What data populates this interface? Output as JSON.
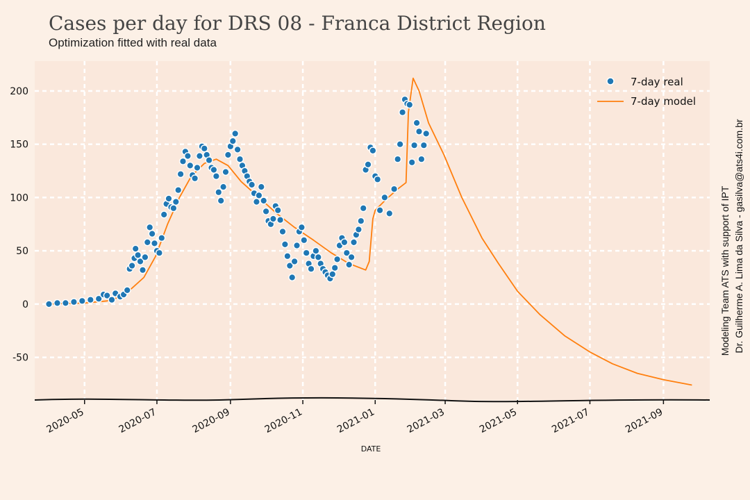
{
  "chart_data": {
    "type": "scatter",
    "title": "Cases per day for DRS 08 - Franca District Region",
    "subtitle": "Optimization fitted with real data",
    "xlabel": "DATE",
    "ylabel": "",
    "credit_lines": [
      "Modeling Team ATS with support of IPT",
      "Dr. Guilherme A. Lima da Silva - gasilva@ats4i.com.br"
    ],
    "xlim": [
      "2020-03-20",
      "2021-10-10"
    ],
    "ylim": [
      -90,
      228
    ],
    "x_ticks": [
      "2020-05",
      "2020-07",
      "2020-09",
      "2020-11",
      "2021-01",
      "2021-03",
      "2021-05",
      "2021-07",
      "2021-09"
    ],
    "y_ticks": [
      200,
      150,
      100,
      50,
      0,
      -50
    ],
    "grid": true,
    "legend_position": "top-right",
    "colors": {
      "real": "#1f77b4",
      "model": "#ff7f0e",
      "background": "#fcf0e6",
      "plot_area": "#fae8dc"
    },
    "series": [
      {
        "name": "7-day real",
        "kind": "scatter",
        "points": [
          [
            "2020-04-01",
            0
          ],
          [
            "2020-04-08",
            1
          ],
          [
            "2020-04-15",
            1
          ],
          [
            "2020-04-22",
            2
          ],
          [
            "2020-04-29",
            3
          ],
          [
            "2020-05-06",
            4
          ],
          [
            "2020-05-13",
            5
          ],
          [
            "2020-05-17",
            9
          ],
          [
            "2020-05-20",
            8
          ],
          [
            "2020-05-24",
            4
          ],
          [
            "2020-05-27",
            10
          ],
          [
            "2020-05-31",
            7
          ],
          [
            "2020-06-03",
            9
          ],
          [
            "2020-06-06",
            13
          ],
          [
            "2020-06-08",
            33
          ],
          [
            "2020-06-10",
            36
          ],
          [
            "2020-06-12",
            43
          ],
          [
            "2020-06-13",
            52
          ],
          [
            "2020-06-15",
            46
          ],
          [
            "2020-06-17",
            40
          ],
          [
            "2020-06-19",
            32
          ],
          [
            "2020-06-21",
            44
          ],
          [
            "2020-06-23",
            58
          ],
          [
            "2020-06-25",
            72
          ],
          [
            "2020-06-27",
            66
          ],
          [
            "2020-06-29",
            57
          ],
          [
            "2020-07-01",
            50
          ],
          [
            "2020-07-03",
            48
          ],
          [
            "2020-07-05",
            62
          ],
          [
            "2020-07-07",
            84
          ],
          [
            "2020-07-09",
            94
          ],
          [
            "2020-07-11",
            99
          ],
          [
            "2020-07-13",
            91
          ],
          [
            "2020-07-15",
            90
          ],
          [
            "2020-07-17",
            96
          ],
          [
            "2020-07-19",
            107
          ],
          [
            "2020-07-21",
            122
          ],
          [
            "2020-07-23",
            134
          ],
          [
            "2020-07-25",
            143
          ],
          [
            "2020-07-27",
            139
          ],
          [
            "2020-07-29",
            130
          ],
          [
            "2020-07-31",
            121
          ],
          [
            "2020-08-02",
            118
          ],
          [
            "2020-08-04",
            128
          ],
          [
            "2020-08-06",
            139
          ],
          [
            "2020-08-08",
            148
          ],
          [
            "2020-08-10",
            146
          ],
          [
            "2020-08-12",
            140
          ],
          [
            "2020-08-14",
            135
          ],
          [
            "2020-08-16",
            128
          ],
          [
            "2020-08-18",
            126
          ],
          [
            "2020-08-20",
            120
          ],
          [
            "2020-08-22",
            105
          ],
          [
            "2020-08-24",
            97
          ],
          [
            "2020-08-26",
            110
          ],
          [
            "2020-08-28",
            124
          ],
          [
            "2020-08-30",
            140
          ],
          [
            "2020-09-01",
            148
          ],
          [
            "2020-09-03",
            153
          ],
          [
            "2020-09-05",
            160
          ],
          [
            "2020-09-07",
            145
          ],
          [
            "2020-09-09",
            136
          ],
          [
            "2020-09-11",
            130
          ],
          [
            "2020-09-13",
            125
          ],
          [
            "2020-09-15",
            120
          ],
          [
            "2020-09-17",
            115
          ],
          [
            "2020-09-19",
            112
          ],
          [
            "2020-09-21",
            104
          ],
          [
            "2020-09-23",
            96
          ],
          [
            "2020-09-25",
            102
          ],
          [
            "2020-09-27",
            110
          ],
          [
            "2020-09-29",
            97
          ],
          [
            "2020-10-01",
            87
          ],
          [
            "2020-10-03",
            78
          ],
          [
            "2020-10-05",
            75
          ],
          [
            "2020-10-07",
            80
          ],
          [
            "2020-10-09",
            92
          ],
          [
            "2020-10-11",
            88
          ],
          [
            "2020-10-13",
            79
          ],
          [
            "2020-10-15",
            68
          ],
          [
            "2020-10-17",
            56
          ],
          [
            "2020-10-19",
            45
          ],
          [
            "2020-10-21",
            36
          ],
          [
            "2020-10-23",
            25
          ],
          [
            "2020-10-25",
            40
          ],
          [
            "2020-10-27",
            55
          ],
          [
            "2020-10-29",
            68
          ],
          [
            "2020-10-31",
            72
          ],
          [
            "2020-11-02",
            60
          ],
          [
            "2020-11-04",
            48
          ],
          [
            "2020-11-06",
            38
          ],
          [
            "2020-11-08",
            33
          ],
          [
            "2020-11-10",
            45
          ],
          [
            "2020-11-12",
            50
          ],
          [
            "2020-11-14",
            44
          ],
          [
            "2020-11-16",
            38
          ],
          [
            "2020-11-18",
            33
          ],
          [
            "2020-11-20",
            30
          ],
          [
            "2020-11-22",
            27
          ],
          [
            "2020-11-24",
            24
          ],
          [
            "2020-11-26",
            28
          ],
          [
            "2020-11-28",
            34
          ],
          [
            "2020-11-30",
            42
          ],
          [
            "2020-12-02",
            55
          ],
          [
            "2020-12-04",
            62
          ],
          [
            "2020-12-06",
            58
          ],
          [
            "2020-12-08",
            48
          ],
          [
            "2020-12-10",
            37
          ],
          [
            "2020-12-12",
            44
          ],
          [
            "2020-12-14",
            58
          ],
          [
            "2020-12-16",
            65
          ],
          [
            "2020-12-18",
            70
          ],
          [
            "2020-12-20",
            78
          ],
          [
            "2020-12-22",
            90
          ],
          [
            "2020-12-24",
            126
          ],
          [
            "2020-12-26",
            131
          ],
          [
            "2020-12-28",
            147
          ],
          [
            "2020-12-30",
            144
          ],
          [
            "2021-01-01",
            120
          ],
          [
            "2021-01-03",
            117
          ],
          [
            "2021-01-05",
            88
          ],
          [
            "2021-01-09",
            100
          ],
          [
            "2021-01-13",
            85
          ],
          [
            "2021-01-17",
            108
          ],
          [
            "2021-01-20",
            136
          ],
          [
            "2021-01-22",
            150
          ],
          [
            "2021-01-24",
            180
          ],
          [
            "2021-01-26",
            192
          ],
          [
            "2021-01-28",
            188
          ],
          [
            "2021-01-30",
            187
          ],
          [
            "2021-02-01",
            133
          ],
          [
            "2021-02-03",
            149
          ],
          [
            "2021-02-05",
            170
          ],
          [
            "2021-02-07",
            162
          ],
          [
            "2021-02-09",
            136
          ],
          [
            "2021-02-11",
            149
          ],
          [
            "2021-02-13",
            160
          ]
        ]
      },
      {
        "name": "7-day model",
        "kind": "line",
        "points": [
          [
            "2020-04-01",
            0
          ],
          [
            "2020-05-01",
            1
          ],
          [
            "2020-05-20",
            3
          ],
          [
            "2020-06-01",
            7
          ],
          [
            "2020-06-10",
            15
          ],
          [
            "2020-06-20",
            25
          ],
          [
            "2020-06-30",
            45
          ],
          [
            "2020-07-10",
            75
          ],
          [
            "2020-07-20",
            100
          ],
          [
            "2020-07-30",
            120
          ],
          [
            "2020-08-10",
            132
          ],
          [
            "2020-08-20",
            136
          ],
          [
            "2020-08-30",
            130
          ],
          [
            "2020-09-10",
            115
          ],
          [
            "2020-09-25",
            100
          ],
          [
            "2020-10-10",
            85
          ],
          [
            "2020-10-25",
            72
          ],
          [
            "2020-11-10",
            60
          ],
          [
            "2020-11-25",
            48
          ],
          [
            "2020-12-10",
            38
          ],
          [
            "2020-12-24",
            32
          ],
          [
            "2020-12-27",
            40
          ],
          [
            "2020-12-30",
            80
          ],
          [
            "2021-01-01",
            88
          ],
          [
            "2021-01-10",
            98
          ],
          [
            "2021-01-20",
            108
          ],
          [
            "2021-01-27",
            114
          ],
          [
            "2021-01-29",
            180
          ],
          [
            "2021-02-02",
            212
          ],
          [
            "2021-02-07",
            200
          ],
          [
            "2021-02-15",
            170
          ],
          [
            "2021-02-28",
            140
          ],
          [
            "2021-03-15",
            100
          ],
          [
            "2021-04-01",
            62
          ],
          [
            "2021-04-15",
            38
          ],
          [
            "2021-05-01",
            12
          ],
          [
            "2021-05-20",
            -10
          ],
          [
            "2021-06-10",
            -30
          ],
          [
            "2021-07-01",
            -45
          ],
          [
            "2021-07-20",
            -56
          ],
          [
            "2021-08-10",
            -65
          ],
          [
            "2021-09-01",
            -71
          ],
          [
            "2021-09-25",
            -76
          ]
        ]
      }
    ]
  }
}
